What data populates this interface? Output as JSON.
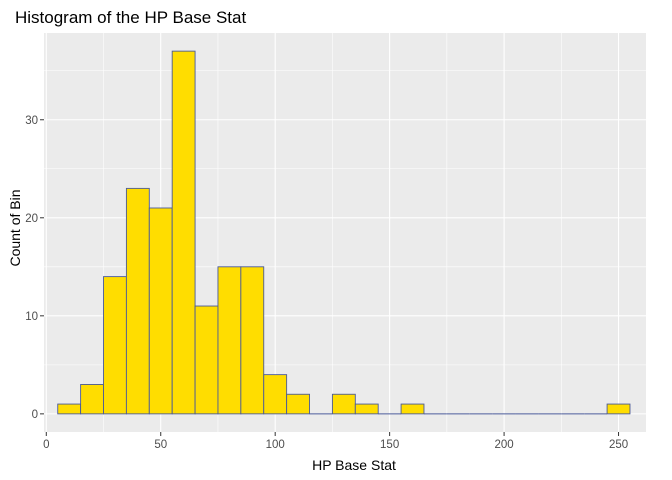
{
  "chart_data": {
    "type": "bar",
    "title": "Histogram of the HP Base Stat",
    "xlabel": "HP Base Stat",
    "ylabel": "Count of Bin",
    "xlim": [
      -1,
      262
    ],
    "ylim": [
      -1.85,
      38.85
    ],
    "x_ticks": [
      0,
      50,
      100,
      150,
      200,
      250
    ],
    "x_tick_labels": [
      "0",
      "50",
      "100",
      "150",
      "200",
      "250"
    ],
    "y_ticks": [
      0,
      10,
      20,
      30
    ],
    "y_tick_labels": [
      "0",
      "10",
      "20",
      "30"
    ],
    "bin_width": 10,
    "bin_centers": [
      10,
      20,
      30,
      40,
      50,
      60,
      70,
      80,
      90,
      100,
      110,
      120,
      130,
      140,
      150,
      160,
      170,
      180,
      190,
      200,
      210,
      220,
      230,
      240,
      250
    ],
    "values": [
      1,
      3,
      14,
      23,
      21,
      37,
      11,
      15,
      15,
      4,
      2,
      0,
      2,
      1,
      0,
      1,
      0,
      0,
      0,
      0,
      0,
      0,
      0,
      0,
      1
    ],
    "grid": true,
    "colors": {
      "bar_fill": "#FFDD00",
      "bar_stroke": "#4A5A99",
      "panel_bg": "#EBEBEB",
      "grid_major": "#FFFFFF"
    }
  }
}
